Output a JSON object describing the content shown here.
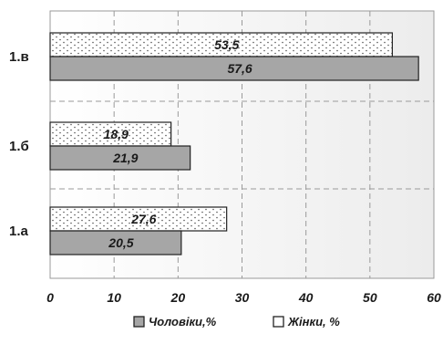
{
  "chart_data": {
    "type": "bar",
    "orientation": "horizontal",
    "categories": [
      "1.в",
      "1.б",
      "1.а"
    ],
    "series": [
      {
        "name": "Жінки, %",
        "values": [
          53.5,
          18.9,
          27.6
        ],
        "labels": [
          "53,5",
          "18,9",
          "27,6"
        ],
        "color": "#ffffff",
        "pattern": "dots"
      },
      {
        "name": "Чоловіки,%",
        "values": [
          57.6,
          21.9,
          20.5
        ],
        "labels": [
          "57,6",
          "21,9",
          "20,5"
        ],
        "color": "#a6a6a6",
        "pattern": "solid"
      }
    ],
    "xlim": [
      0,
      60
    ],
    "xticks": [
      0,
      10,
      20,
      30,
      40,
      50,
      60
    ],
    "grid": true,
    "legend_position": "bottom",
    "legend_order": [
      "Чоловіки,%",
      "Жінки, %"
    ],
    "title": "",
    "xlabel": "",
    "ylabel": ""
  }
}
